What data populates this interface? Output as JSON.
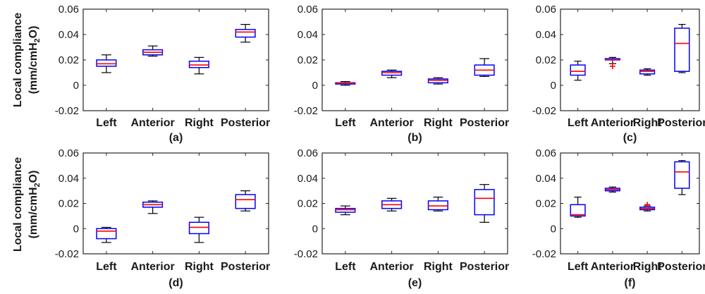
{
  "colors": {
    "box": "#0000ff",
    "median": "#ff0000",
    "whisker": "#000000",
    "outlier": "#ff0000",
    "axis": "#262626"
  },
  "y_label": {
    "line1": "Local compliance",
    "line2_pre": "(mm/cmH",
    "line2_sub": "2",
    "line2_post": "O)"
  },
  "chart_data": [
    {
      "type": "box",
      "panel_label": "(a)",
      "categories": [
        "Left",
        "Anterior",
        "Right",
        "Posterior"
      ],
      "ylim": [
        -0.02,
        0.06
      ],
      "yticks": [
        -0.02,
        0,
        0.02,
        0.04,
        0.06
      ],
      "ytick_labels": [
        "-0.02",
        "0",
        "0.02",
        "0.04",
        "0.06"
      ],
      "boxes": [
        {
          "whisker_low": 0.01,
          "q1": 0.015,
          "median": 0.017,
          "q3": 0.02,
          "whisker_high": 0.024,
          "outliers": []
        },
        {
          "whisker_low": 0.023,
          "q1": 0.024,
          "median": 0.026,
          "q3": 0.028,
          "whisker_high": 0.031,
          "outliers": []
        },
        {
          "whisker_low": 0.009,
          "q1": 0.014,
          "median": 0.016,
          "q3": 0.019,
          "whisker_high": 0.022,
          "outliers": []
        },
        {
          "whisker_low": 0.034,
          "q1": 0.038,
          "median": 0.042,
          "q3": 0.044,
          "whisker_high": 0.048,
          "outliers": []
        }
      ]
    },
    {
      "type": "box",
      "panel_label": "(b)",
      "categories": [
        "Left",
        "Anterior",
        "Right",
        "Posterior"
      ],
      "ylim": [
        -0.02,
        0.06
      ],
      "yticks": [
        -0.02,
        0,
        0.02,
        0.04,
        0.06
      ],
      "ytick_labels": [
        "-0.02",
        "0",
        "0.02",
        "0.04",
        "0.06"
      ],
      "boxes": [
        {
          "whisker_low": 0.0,
          "q1": 0.001,
          "median": 0.002,
          "q3": 0.002,
          "whisker_high": 0.003,
          "outliers": []
        },
        {
          "whisker_low": 0.006,
          "q1": 0.008,
          "median": 0.01,
          "q3": 0.011,
          "whisker_high": 0.012,
          "outliers": []
        },
        {
          "whisker_low": 0.001,
          "q1": 0.002,
          "median": 0.004,
          "q3": 0.005,
          "whisker_high": 0.006,
          "outliers": []
        },
        {
          "whisker_low": 0.007,
          "q1": 0.008,
          "median": 0.012,
          "q3": 0.016,
          "whisker_high": 0.021,
          "outliers": []
        }
      ]
    },
    {
      "type": "box",
      "panel_label": "(c)",
      "categories": [
        "Left",
        "Anterior",
        "Right",
        "Posterior"
      ],
      "ylim": [
        -0.02,
        0.06
      ],
      "yticks": [
        -0.02,
        0,
        0.02,
        0.04,
        0.06
      ],
      "ytick_labels": [
        "-0.02",
        "0",
        "0.02",
        "0.04",
        "0.06"
      ],
      "boxes": [
        {
          "whisker_low": 0.004,
          "q1": 0.008,
          "median": 0.011,
          "q3": 0.016,
          "whisker_high": 0.019,
          "outliers": []
        },
        {
          "whisker_low": 0.017,
          "q1": 0.02,
          "median": 0.02,
          "q3": 0.021,
          "whisker_high": 0.022,
          "outliers": [
            0.015
          ]
        },
        {
          "whisker_low": 0.008,
          "q1": 0.009,
          "median": 0.011,
          "q3": 0.012,
          "whisker_high": 0.013,
          "outliers": []
        },
        {
          "whisker_low": 0.01,
          "q1": 0.011,
          "median": 0.033,
          "q3": 0.045,
          "whisker_high": 0.048,
          "outliers": []
        }
      ]
    },
    {
      "type": "box",
      "panel_label": "(d)",
      "categories": [
        "Left",
        "Anterior",
        "Right",
        "Posterior"
      ],
      "ylim": [
        -0.02,
        0.06
      ],
      "yticks": [
        -0.02,
        0,
        0.02,
        0.04,
        0.06
      ],
      "ytick_labels": [
        "-0.02",
        "0",
        "0.02",
        "0.04",
        "0.06"
      ],
      "boxes": [
        {
          "whisker_low": -0.011,
          "q1": -0.008,
          "median": -0.002,
          "q3": 0.0,
          "whisker_high": 0.001,
          "outliers": []
        },
        {
          "whisker_low": 0.012,
          "q1": 0.017,
          "median": 0.019,
          "q3": 0.021,
          "whisker_high": 0.022,
          "outliers": []
        },
        {
          "whisker_low": -0.011,
          "q1": -0.004,
          "median": 0.001,
          "q3": 0.005,
          "whisker_high": 0.009,
          "outliers": []
        },
        {
          "whisker_low": 0.014,
          "q1": 0.016,
          "median": 0.023,
          "q3": 0.027,
          "whisker_high": 0.03,
          "outliers": []
        }
      ]
    },
    {
      "type": "box",
      "panel_label": "(e)",
      "categories": [
        "Left",
        "Anterior",
        "Right",
        "Posterior"
      ],
      "ylim": [
        -0.02,
        0.06
      ],
      "yticks": [
        -0.02,
        0,
        0.02,
        0.04,
        0.06
      ],
      "ytick_labels": [
        "-0.02",
        "0",
        "0.02",
        "0.04",
        "0.06"
      ],
      "boxes": [
        {
          "whisker_low": 0.011,
          "q1": 0.013,
          "median": 0.015,
          "q3": 0.016,
          "whisker_high": 0.018,
          "outliers": []
        },
        {
          "whisker_low": 0.014,
          "q1": 0.016,
          "median": 0.019,
          "q3": 0.022,
          "whisker_high": 0.024,
          "outliers": []
        },
        {
          "whisker_low": 0.014,
          "q1": 0.015,
          "median": 0.018,
          "q3": 0.022,
          "whisker_high": 0.025,
          "outliers": []
        },
        {
          "whisker_low": 0.005,
          "q1": 0.011,
          "median": 0.024,
          "q3": 0.031,
          "whisker_high": 0.035,
          "outliers": []
        }
      ]
    },
    {
      "type": "box",
      "panel_label": "(f)",
      "categories": [
        "Left",
        "Anterior",
        "Right",
        "Posterior"
      ],
      "ylim": [
        -0.02,
        0.06
      ],
      "yticks": [
        -0.02,
        0,
        0.02,
        0.04,
        0.06
      ],
      "ytick_labels": [
        "-0.02",
        "0",
        "0.02",
        "0.04",
        "0.06"
      ],
      "boxes": [
        {
          "whisker_low": 0.009,
          "q1": 0.01,
          "median": 0.011,
          "q3": 0.019,
          "whisker_high": 0.025,
          "outliers": []
        },
        {
          "whisker_low": 0.029,
          "q1": 0.03,
          "median": 0.031,
          "q3": 0.032,
          "whisker_high": 0.033,
          "outliers": []
        },
        {
          "whisker_low": 0.014,
          "q1": 0.015,
          "median": 0.016,
          "q3": 0.017,
          "whisker_high": 0.018,
          "outliers": [
            0.019
          ]
        },
        {
          "whisker_low": 0.027,
          "q1": 0.032,
          "median": 0.045,
          "q3": 0.053,
          "whisker_high": 0.054,
          "outliers": []
        }
      ]
    }
  ]
}
